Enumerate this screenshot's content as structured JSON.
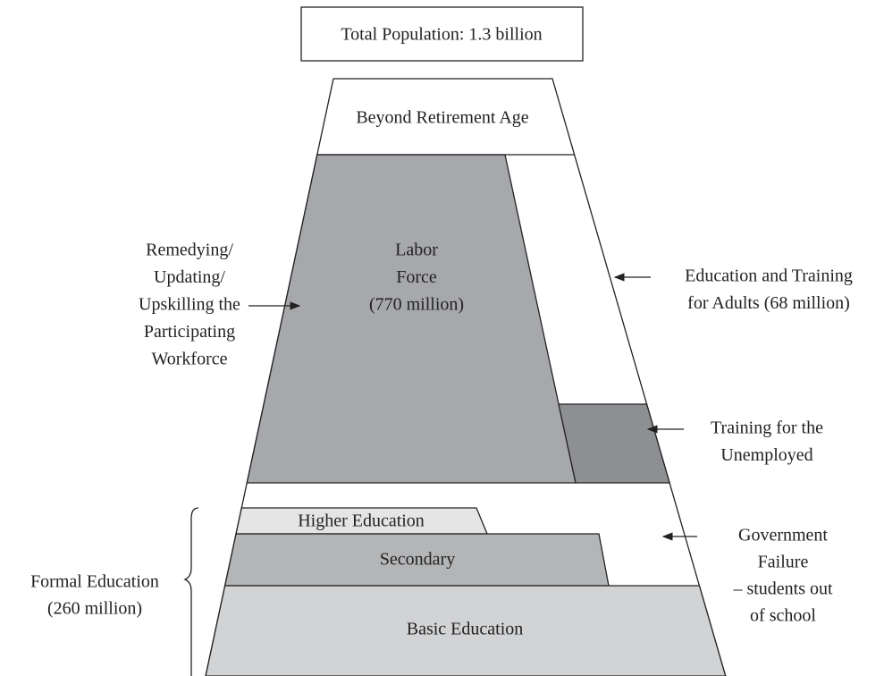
{
  "header": {
    "title": "Total Population: 1.3 billion"
  },
  "regions": {
    "retirement": "Beyond Retirement Age",
    "labor": [
      "Labor",
      "Force",
      "(770 million)"
    ],
    "higher": "Higher Education",
    "secondary": "Secondary",
    "basic": "Basic Education"
  },
  "annotations": {
    "upskilling": [
      "Remedying/",
      "Updating/",
      "Upskilling the",
      "Participating",
      "Workforce"
    ],
    "adults": [
      "Education and Training",
      "for Adults (68 million)"
    ],
    "unemployed": [
      "Training for the",
      "Unemployed"
    ],
    "government": [
      "Government",
      "Failure",
      "– students out",
      "of school"
    ],
    "formal": [
      "Formal  Education",
      "(260 million)"
    ]
  }
}
